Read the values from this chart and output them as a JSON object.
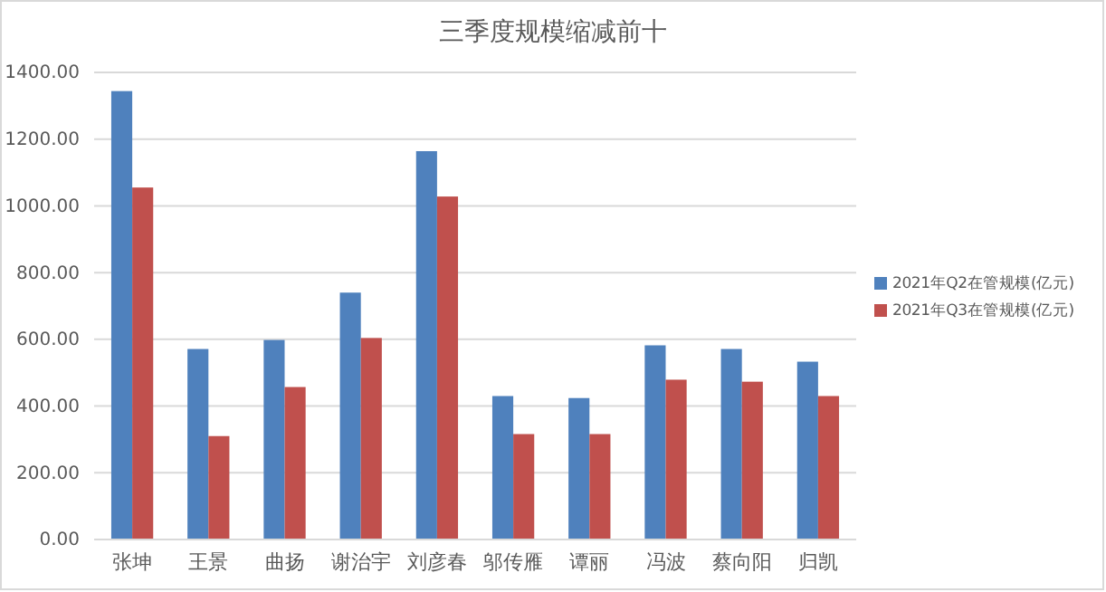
{
  "chart_data": {
    "type": "bar",
    "title": "三季度规模缩减前十",
    "categories": [
      "张坤",
      "王景",
      "曲扬",
      "谢治宇",
      "刘彦春",
      "邬传雁",
      "谭丽",
      "冯波",
      "蔡向阳",
      "归凯"
    ],
    "series": [
      {
        "name": "2021年Q2在管规模(亿元)",
        "color": "#4f81bd",
        "values": [
          1344,
          571,
          598,
          740,
          1164,
          430,
          424,
          582,
          571,
          533
        ]
      },
      {
        "name": "2021年Q3在管规模(亿元)",
        "color": "#c0504d",
        "values": [
          1055,
          310,
          457,
          604,
          1028,
          316,
          316,
          479,
          473,
          430
        ]
      }
    ],
    "ylim": [
      0,
      1400
    ],
    "yticks": [
      {
        "value": 0,
        "label": "0.00"
      },
      {
        "value": 200,
        "label": "200.00"
      },
      {
        "value": 400,
        "label": "400.00"
      },
      {
        "value": 600,
        "label": "600.00"
      },
      {
        "value": 800,
        "label": "800.00"
      },
      {
        "value": 1000,
        "label": "1000.00"
      },
      {
        "value": 1200,
        "label": "1200.00"
      },
      {
        "value": 1400,
        "label": "1400.00"
      }
    ],
    "grid": "y",
    "legend": "right"
  }
}
